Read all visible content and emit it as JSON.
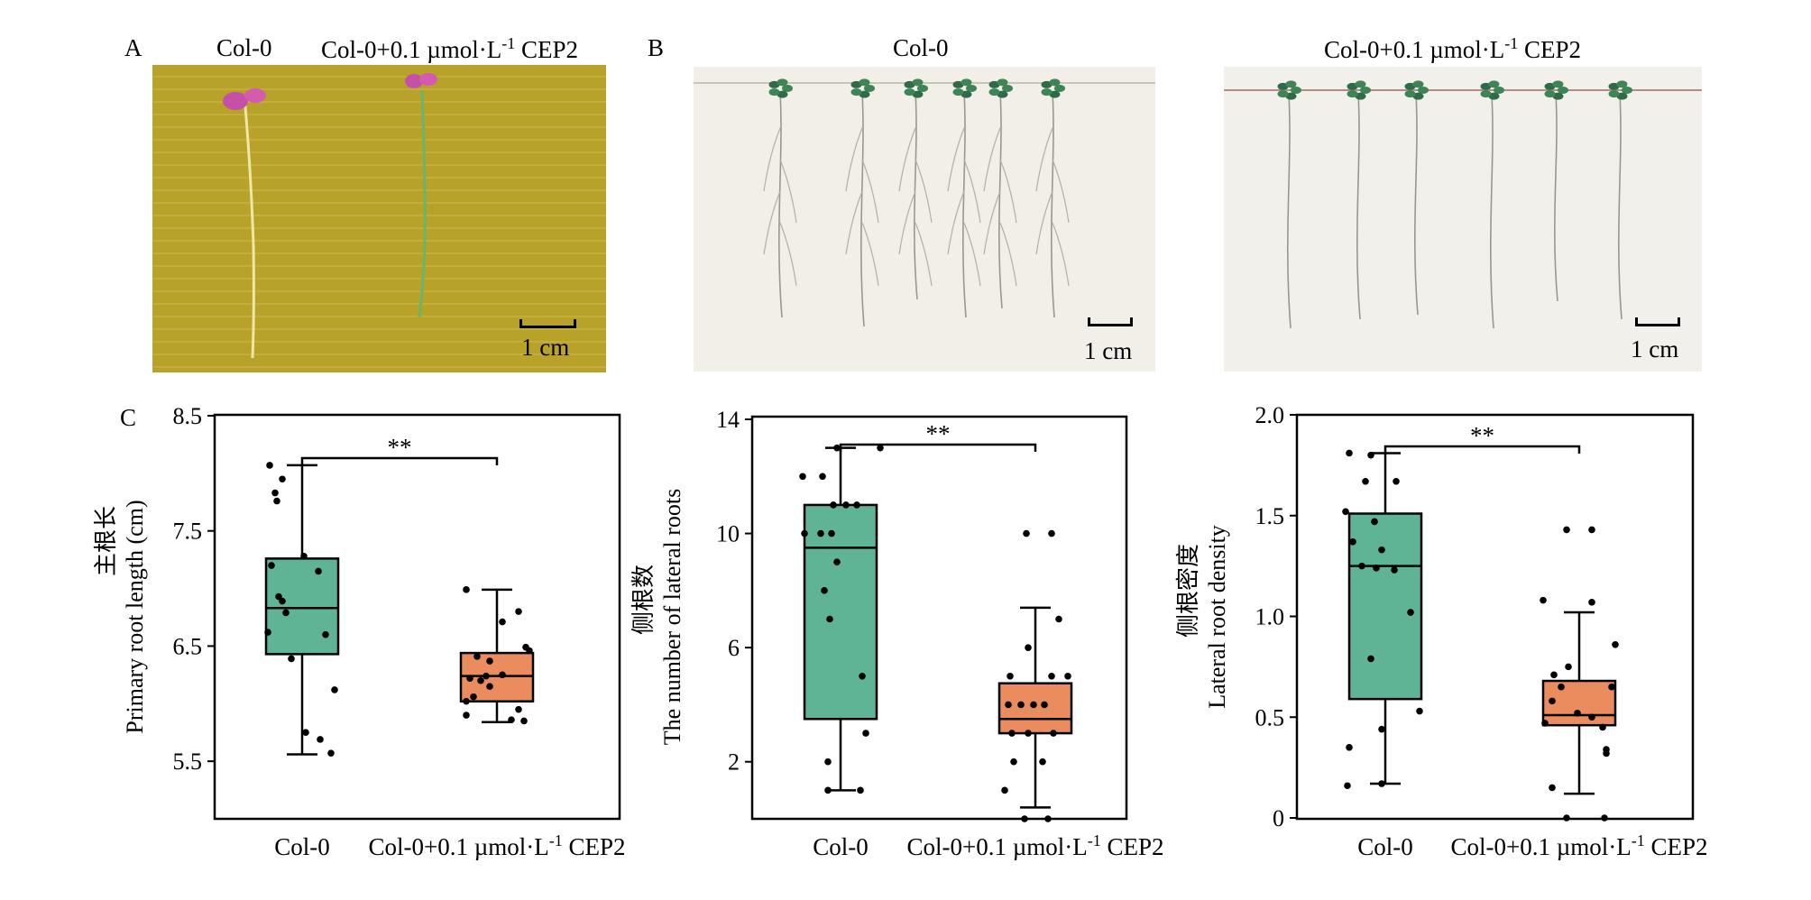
{
  "panels": {
    "a": {
      "letter": "A",
      "titles": [
        "Col-0",
        "Col-0+0.1 µmol·L",
        "-1",
        " CEP2"
      ],
      "scale": "1 cm",
      "bg_color": "#b8a229"
    },
    "b": {
      "letter": "B",
      "left_title": "Col-0",
      "right_title_main": "Col-0+0.1 µmol·L",
      "right_title_sup": "-1",
      "right_title_tail": " CEP2",
      "scale": "1 cm",
      "plate_color": "#f1efe8"
    },
    "c": {
      "letter": "C"
    }
  },
  "colors": {
    "col0": "#5fb495",
    "cep2": "#ea8c5d"
  },
  "chart_data": [
    {
      "type": "box",
      "ylabel_cn": "主根长",
      "ylabel": "Primary root length (cm)",
      "ylim": [
        5.0,
        8.5
      ],
      "yticks": [
        "5.5",
        "6.5",
        "7.5",
        "8.5"
      ],
      "categories": [
        "Col-0",
        "Col-0+0.1 µmol·L-1 CEP2"
      ],
      "category_labels": [
        {
          "main": "Col-0",
          "sup": "",
          "tail": ""
        },
        {
          "main": "Col-0+0.1 µmol·L",
          "sup": "-1",
          "tail": " CEP2"
        }
      ],
      "significance": "**",
      "series": [
        {
          "name": "Col-0",
          "whisker_low": 5.56,
          "q1": 6.43,
          "median": 6.83,
          "q3": 7.26,
          "whisker_high": 8.07,
          "points": [
            8.07,
            7.95,
            7.83,
            7.76,
            7.28,
            7.2,
            7.15,
            6.93,
            6.89,
            6.79,
            6.62,
            6.6,
            6.39,
            6.12,
            5.75,
            5.69,
            5.57
          ]
        },
        {
          "name": "Col-0+0.1 µmol·L-1 CEP2",
          "whisker_low": 5.84,
          "q1": 6.02,
          "median": 6.24,
          "q3": 6.44,
          "whisker_high": 6.99,
          "points": [
            6.99,
            6.8,
            6.71,
            6.49,
            6.46,
            6.41,
            6.37,
            6.25,
            6.24,
            6.22,
            6.2,
            6.15,
            6.06,
            6.02,
            5.95,
            5.9,
            5.86,
            5.85
          ]
        }
      ]
    },
    {
      "type": "box",
      "ylabel_cn": "侧根数",
      "ylabel": "The number of lateral roots",
      "ylim": [
        0,
        14
      ],
      "yticks": [
        "2",
        "6",
        "10",
        "14"
      ],
      "categories": [
        "Col-0",
        "Col-0+0.1 µmol·L-1 CEP2"
      ],
      "category_labels": [
        {
          "main": "Col-0",
          "sup": "",
          "tail": ""
        },
        {
          "main": "Col-0+0.1 µmol·L",
          "sup": "-1",
          "tail": " CEP2"
        }
      ],
      "significance": "**",
      "series": [
        {
          "name": "Col-0",
          "whisker_low": 1,
          "q1": 3.5,
          "median": 9.5,
          "q3": 11,
          "whisker_high": 13,
          "points": [
            13,
            13,
            12,
            12,
            11,
            11,
            11,
            10,
            10,
            10,
            9,
            8,
            7,
            5,
            3,
            2,
            1,
            1
          ]
        },
        {
          "name": "Col-0+0.1 µmol·L-1 CEP2",
          "whisker_low": 0.4,
          "q1": 3,
          "median": 3.5,
          "q3": 4.75,
          "whisker_high": 7.4,
          "points": [
            10,
            10,
            7,
            6,
            5,
            5,
            5,
            4,
            4,
            4,
            4,
            3,
            3,
            3,
            2,
            2,
            1,
            0,
            0
          ]
        }
      ]
    },
    {
      "type": "box",
      "ylabel_cn": "侧根密度",
      "ylabel": "Lateral root density",
      "ylim": [
        0,
        2.0
      ],
      "yticks": [
        "0",
        "0.5",
        "1.0",
        "1.5",
        "2.0"
      ],
      "categories": [
        "Col-0",
        "Col-0+0.1 µmol·L-1 CEP2"
      ],
      "category_labels": [
        {
          "main": "Col-0",
          "sup": "",
          "tail": ""
        },
        {
          "main": "Col-0+0.1 µmol·L",
          "sup": "-1",
          "tail": " CEP2"
        }
      ],
      "significance": "**",
      "series": [
        {
          "name": "Col-0",
          "whisker_low": 0.17,
          "q1": 0.59,
          "median": 1.25,
          "q3": 1.51,
          "whisker_high": 1.81,
          "points": [
            1.81,
            1.8,
            1.67,
            1.67,
            1.52,
            1.47,
            1.37,
            1.33,
            1.25,
            1.24,
            1.23,
            1.02,
            0.79,
            0.53,
            0.44,
            0.35,
            0.17,
            0.16
          ]
        },
        {
          "name": "Col-0+0.1 µmol·L-1 CEP2",
          "whisker_low": 0.12,
          "q1": 0.46,
          "median": 0.51,
          "q3": 0.68,
          "whisker_high": 1.02,
          "points": [
            1.43,
            1.43,
            1.08,
            1.07,
            0.86,
            0.75,
            0.71,
            0.65,
            0.65,
            0.58,
            0.52,
            0.5,
            0.47,
            0.45,
            0.34,
            0.32,
            0.15,
            0,
            0
          ]
        }
      ]
    }
  ]
}
